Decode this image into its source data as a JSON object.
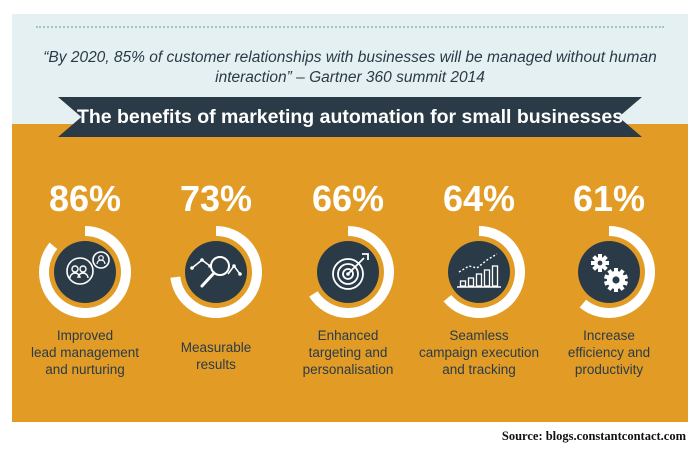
{
  "quote": "“By 2020, 85% of customer relationships with businesses will be managed without human interaction” – Gartner 360 summit 2014",
  "banner_title": "The benefits of marketing automation for small businesses",
  "source": "Source: blogs.constantcontact.com",
  "colors": {
    "orange": "#e29c25",
    "navy": "#2a3b47",
    "light_blue": "#e4f0f2",
    "white": "#ffffff"
  },
  "chart_data": {
    "type": "pie",
    "title": "The benefits of marketing automation for small businesses",
    "unit": "%",
    "items": [
      {
        "value": 86,
        "label_lines": [
          "Improved",
          "lead management",
          "and nurturing"
        ],
        "icon": "people-icon"
      },
      {
        "value": 73,
        "label_lines": [
          "Measurable",
          "results"
        ],
        "icon": "magnifier-chart-icon"
      },
      {
        "value": 66,
        "label_lines": [
          "Enhanced",
          "targeting and",
          "personalisation"
        ],
        "icon": "target-icon"
      },
      {
        "value": 64,
        "label_lines": [
          "Seamless",
          "campaign execution",
          "and tracking"
        ],
        "icon": "bar-chart-icon"
      },
      {
        "value": 61,
        "label_lines": [
          "Increase",
          "efficiency and",
          "productivity"
        ],
        "icon": "gears-icon"
      }
    ]
  }
}
